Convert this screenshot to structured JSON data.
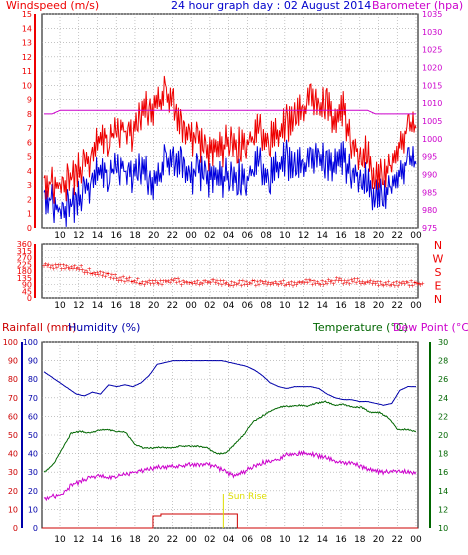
{
  "colors": {
    "wind_avg": "#0000dd",
    "wind_gust": "#ee0000",
    "barometer": "#cc00cc",
    "direction": "#ee0000",
    "humidity": "#0000aa",
    "temperature": "#006600",
    "dewpoint": "#cc00cc",
    "rainfall": "#cc0000",
    "sunrise": "#dddd00",
    "grid": "#a0a0a0"
  },
  "header": {
    "windspeed": "Windspeed (m/s)",
    "title": "24 hour graph day : 02 August 2014",
    "barometer": "Barometer (hpa)"
  },
  "labels2": {
    "rainfall": "Rainfall (mm)",
    "humidity": "Humidity (%)",
    "temperature": "Temperature (°C)",
    "dewpoint": "Dew Point (°C)",
    "sunrise": "Sun Rise"
  },
  "chart_data": [
    {
      "type": "line",
      "name": "wind-barometer",
      "x_ticks": [
        "10",
        "12",
        "14",
        "16",
        "18",
        "20",
        "22",
        "00",
        "02",
        "04",
        "06",
        "08",
        "10",
        "12",
        "14",
        "16",
        "18",
        "20",
        "22",
        "00"
      ],
      "ylim_left": [
        0,
        15
      ],
      "ylim_right": [
        975,
        1035
      ],
      "yticks_left": [
        0,
        1,
        2,
        3,
        4,
        5,
        6,
        7,
        8,
        9,
        10,
        11,
        12,
        13,
        14,
        15
      ],
      "yticks_right": [
        975,
        980,
        985,
        990,
        995,
        1000,
        1005,
        1010,
        1015,
        1020,
        1025,
        1030,
        1035
      ],
      "series": [
        {
          "name": "Windspeed",
          "color_key": "wind_avg",
          "axis": "left",
          "values": [
            2.5,
            1.8,
            1.2,
            1.5,
            1.8,
            2.6,
            3.0,
            4.2,
            3.8,
            4.5,
            4.0,
            3.6,
            4.2,
            3.5,
            3.2,
            4.8,
            4.4,
            4.8,
            3.0,
            4.4,
            3.2,
            3.6,
            3.4,
            3.8,
            3.6,
            3.2,
            4.3,
            4.4,
            3.6,
            4.3,
            4.8,
            4.3,
            4.4,
            5.0,
            5.0,
            4.6,
            4.2,
            4.8,
            3.5,
            3.8,
            3.2,
            2.2,
            2.3,
            3.5,
            4.0,
            4.5,
            4.5
          ]
        },
        {
          "name": "Gust",
          "color_key": "wind_gust",
          "axis": "left",
          "values": [
            3.5,
            3.0,
            3.0,
            3.3,
            3.8,
            4.5,
            4.8,
            6.5,
            6.3,
            7.0,
            6.8,
            6.5,
            8.0,
            8.5,
            8.6,
            9.5,
            8.5,
            7.2,
            6.0,
            6.5,
            5.0,
            5.5,
            5.5,
            6.3,
            5.8,
            5.8,
            6.5,
            6.8,
            6.2,
            6.5,
            7.3,
            7.8,
            8.2,
            9.5,
            8.4,
            9.0,
            7.0,
            8.3,
            5.6,
            5.3,
            5.2,
            3.4,
            3.8,
            5.0,
            6.0,
            6.8,
            7.0
          ]
        },
        {
          "name": "Barometer",
          "color_key": "barometer",
          "axis": "right",
          "values": [
            1007,
            1007,
            1008,
            1008,
            1008,
            1008,
            1008,
            1008,
            1008,
            1008,
            1008,
            1008,
            1008,
            1008,
            1008,
            1008,
            1008,
            1008,
            1008,
            1008,
            1008,
            1008,
            1008,
            1008,
            1008,
            1008,
            1008,
            1008,
            1008,
            1008,
            1008,
            1008,
            1008,
            1008,
            1008,
            1008,
            1008,
            1008,
            1008,
            1008,
            1008,
            1007,
            1007,
            1007,
            1007,
            1007,
            1007
          ]
        }
      ]
    },
    {
      "type": "scatter",
      "name": "wind-direction",
      "x_ticks": [
        "10",
        "12",
        "14",
        "16",
        "18",
        "20",
        "22",
        "00",
        "02",
        "04",
        "06",
        "08",
        "10",
        "12",
        "14",
        "16",
        "18",
        "20",
        "22",
        "00"
      ],
      "ylim": [
        0,
        360
      ],
      "yticks": [
        0,
        45,
        90,
        135,
        180,
        225,
        270,
        315,
        360
      ],
      "ytick_labels": [
        "0",
        "45",
        "90",
        "135",
        "180",
        "225",
        "270",
        "315",
        "360"
      ],
      "right_labels": [
        "N",
        "W",
        "S",
        "E",
        "N"
      ],
      "values": [
        215,
        210,
        205,
        200,
        195,
        180,
        165,
        155,
        145,
        130,
        120,
        110,
        105,
        100,
        100,
        110,
        120,
        105,
        100,
        98,
        105,
        110,
        100,
        95,
        100,
        98,
        100,
        100,
        95,
        100,
        98,
        100,
        105,
        100,
        95,
        110,
        120,
        110,
        115,
        100,
        105,
        100,
        98,
        95,
        100,
        98,
        95
      ]
    },
    {
      "type": "line",
      "name": "humidity-temperature-rain",
      "x_ticks": [
        "10",
        "12",
        "14",
        "16",
        "18",
        "20",
        "22",
        "00",
        "02",
        "04",
        "06",
        "08",
        "10",
        "12",
        "14",
        "16",
        "18",
        "20",
        "22",
        "00"
      ],
      "ylim_left": [
        0,
        100
      ],
      "yticks_left": [
        0,
        10,
        20,
        30,
        40,
        50,
        60,
        70,
        80,
        90,
        100
      ],
      "ylim_right": [
        10,
        30
      ],
      "yticks_right": [
        10,
        12,
        14,
        16,
        18,
        20,
        22,
        24,
        26,
        28,
        30
      ],
      "series": [
        {
          "name": "Humidity",
          "color_key": "humidity",
          "axis": "left",
          "values": [
            84,
            81,
            78,
            75,
            72,
            71,
            73,
            72,
            77,
            76,
            77,
            76,
            78,
            82,
            88,
            89,
            90,
            90,
            90,
            90,
            90,
            90,
            90,
            89,
            88,
            87,
            85,
            82,
            78,
            76,
            75,
            76,
            76,
            76,
            75,
            72,
            70,
            69,
            69,
            68,
            68,
            67,
            66,
            67,
            74,
            76,
            76
          ]
        },
        {
          "name": "Rainfall",
          "color_key": "rainfall",
          "axis": "left",
          "values": [
            0,
            0,
            0,
            0,
            0,
            0,
            0,
            0,
            0,
            0,
            0,
            0,
            0,
            0,
            0,
            0,
            0,
            0,
            0,
            0,
            0,
            0,
            0,
            0,
            0,
            0,
            0,
            0,
            0,
            0,
            0,
            0,
            0,
            0,
            0,
            0,
            0,
            0,
            0,
            0,
            0,
            0,
            0,
            0,
            0,
            0,
            0
          ]
        },
        {
          "name": "Temperature",
          "color_key": "temperature",
          "axis": "right",
          "values": [
            16,
            16.8,
            18.5,
            20.2,
            20.4,
            20.2,
            20.5,
            20.6,
            20.4,
            20.3,
            19.0,
            18.6,
            18.6,
            18.7,
            18.6,
            18.8,
            18.8,
            18.8,
            18.6,
            18.0,
            18.0,
            19.0,
            20.0,
            21.4,
            22.0,
            22.6,
            23.0,
            23.1,
            23.2,
            23.1,
            23.4,
            23.6,
            23.2,
            23.3,
            23.0,
            23.0,
            22.4,
            22.4,
            21.8,
            20.6,
            20.6,
            20.4
          ]
        },
        {
          "name": "Dew Point",
          "color_key": "dewpoint",
          "axis": "right",
          "values": [
            13.2,
            13.4,
            13.6,
            14.6,
            15.0,
            15.4,
            15.6,
            15.4,
            15.6,
            15.8,
            16.0,
            16.2,
            16.4,
            16.6,
            16.6,
            16.6,
            16.8,
            16.8,
            16.8,
            16.6,
            16.0,
            15.6,
            16.0,
            16.6,
            17.0,
            17.2,
            17.4,
            18.0,
            18.0,
            18.0,
            17.8,
            17.6,
            17.2,
            17.0,
            17.0,
            16.6,
            16.2,
            16.0,
            16.0,
            16.2,
            16.0,
            16.0
          ]
        }
      ]
    }
  ]
}
